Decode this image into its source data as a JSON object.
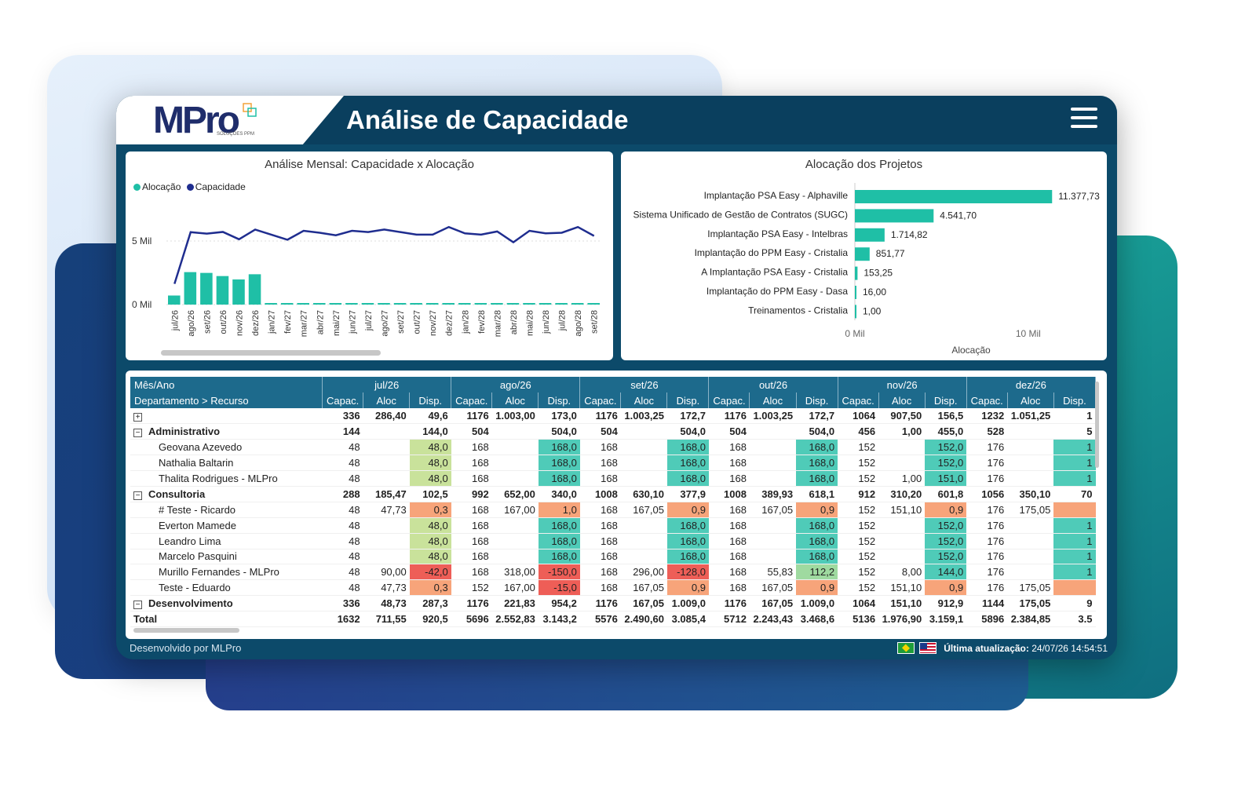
{
  "header": {
    "title": "Análise de Capacidade",
    "logo": "MPro",
    "logo_sub": "SOLUÇÕES PPM"
  },
  "left_chart": {
    "title": "Análise Mensal: Capacidade x Alocação",
    "legend": [
      {
        "name": "Alocação",
        "color": "#1fbfa6"
      },
      {
        "name": "Capacidade",
        "color": "#1f2d8f"
      }
    ],
    "y_ticks": [
      "5 Mil",
      "0 Mil"
    ]
  },
  "right_chart": {
    "title": "Alocação dos Projetos",
    "x_ticks": [
      "0 Mil",
      "10 Mil"
    ],
    "xlabel": "Alocação"
  },
  "chart_data": [
    {
      "type": "bar",
      "title": "Análise Mensal: Capacidade x Alocação",
      "categories": [
        "jul/26",
        "ago/26",
        "set/26",
        "out/26",
        "nov/26",
        "dez/26",
        "jan/27",
        "fev/27",
        "mar/27",
        "abr/27",
        "mai/27",
        "jun/27",
        "jul/27",
        "ago/27",
        "set/27",
        "out/27",
        "nov/27",
        "dez/27",
        "jan/28",
        "fev/28",
        "mar/28",
        "abr/28",
        "mai/28",
        "jun/28",
        "jul/28",
        "ago/28",
        "set/28"
      ],
      "series": [
        {
          "name": "Alocação",
          "type": "bar",
          "values": [
            712,
            2553,
            2491,
            2243,
            1977,
            2385,
            20,
            20,
            15,
            15,
            20,
            40,
            40,
            40,
            40,
            40,
            40,
            40,
            40,
            40,
            40,
            40,
            40,
            40,
            40,
            40,
            40
          ]
        },
        {
          "name": "Capacidade",
          "type": "line",
          "values": [
            1632,
            5696,
            5576,
            5712,
            5136,
            5896,
            5500,
            5100,
            5800,
            5650,
            5450,
            5800,
            5700,
            5900,
            5700,
            5500,
            5500,
            6100,
            5600,
            5500,
            5750,
            4900,
            5800,
            5600,
            5650,
            6100,
            5400
          ]
        }
      ],
      "ylim": [
        0,
        7000
      ]
    },
    {
      "type": "bar",
      "title": "Alocação dos Projetos",
      "categories": [
        "Implantação PSA Easy - Alphaville",
        "Sistema Unificado de Gestão de Contratos (SUGC)",
        "Implantação PSA Easy - Intelbras",
        "Implantação do PPM Easy - Cristalia",
        "A Implantação PSA Easy - Cristalia",
        "Implantação do PPM Easy - Dasa",
        "Treinamentos - Cristalia"
      ],
      "values": [
        11377.73,
        4541.7,
        1714.82,
        851.77,
        153.25,
        16.0,
        1.0
      ],
      "labels": [
        "11.377,73",
        "4.541,70",
        "1.714,82",
        "851,77",
        "153,25",
        "16,00",
        "1,00"
      ],
      "xlabel": "Alocação",
      "xlim": [
        0,
        12000
      ]
    }
  ],
  "table": {
    "corner_top": "Mês/Ano",
    "corner_bottom": "Departamento > Recurso",
    "months": [
      "jul/26",
      "ago/26",
      "set/26",
      "out/26",
      "nov/26",
      "dez/26"
    ],
    "sub_headers": [
      "Capac.",
      "Aloc",
      "Disp."
    ],
    "rows": [
      {
        "kind": "expand",
        "toggle": "⊞",
        "name": "",
        "cells": [
          "336",
          "286,40",
          "49,6",
          "1176",
          "1.003,00",
          "173,0",
          "1176",
          "1.003,25",
          "172,7",
          "1176",
          "1.003,25",
          "172,7",
          "1064",
          "907,50",
          "156,5",
          "1232",
          "1.051,25",
          "1"
        ],
        "bold": true
      },
      {
        "kind": "group",
        "toggle": "⊟",
        "name": "Administrativo",
        "cells": [
          "144",
          "",
          "144,0",
          "504",
          "",
          "504,0",
          "504",
          "",
          "504,0",
          "504",
          "",
          "504,0",
          "456",
          "1,00",
          "455,0",
          "528",
          "",
          "5"
        ]
      },
      {
        "kind": "item",
        "name": "Geovana Azevedo",
        "cells": [
          "48",
          "",
          "48,0",
          "168",
          "",
          "168,0",
          "168",
          "",
          "168,0",
          "168",
          "",
          "168,0",
          "152",
          "",
          "152,0",
          "176",
          "",
          "1"
        ],
        "colors": [
          "",
          "",
          "#c9e29b",
          "",
          "",
          "#4fcbb8",
          "",
          "",
          "#4fcbb8",
          "",
          "",
          "#4fcbb8",
          "",
          "",
          "#4fcbb8",
          "",
          "",
          "#4fcbb8"
        ]
      },
      {
        "kind": "item",
        "name": "Nathalia Baltarin",
        "cells": [
          "48",
          "",
          "48,0",
          "168",
          "",
          "168,0",
          "168",
          "",
          "168,0",
          "168",
          "",
          "168,0",
          "152",
          "",
          "152,0",
          "176",
          "",
          "1"
        ],
        "colors": [
          "",
          "",
          "#c9e29b",
          "",
          "",
          "#4fcbb8",
          "",
          "",
          "#4fcbb8",
          "",
          "",
          "#4fcbb8",
          "",
          "",
          "#4fcbb8",
          "",
          "",
          "#4fcbb8"
        ]
      },
      {
        "kind": "item",
        "name": "Thalita Rodrigues - MLPro",
        "cells": [
          "48",
          "",
          "48,0",
          "168",
          "",
          "168,0",
          "168",
          "",
          "168,0",
          "168",
          "",
          "168,0",
          "152",
          "1,00",
          "151,0",
          "176",
          "",
          "1"
        ],
        "colors": [
          "",
          "",
          "#c9e29b",
          "",
          "",
          "#4fcbb8",
          "",
          "",
          "#4fcbb8",
          "",
          "",
          "#4fcbb8",
          "",
          "",
          "#4fcbb8",
          "",
          "",
          "#4fcbb8"
        ]
      },
      {
        "kind": "group",
        "toggle": "⊟",
        "name": "Consultoria",
        "cells": [
          "288",
          "185,47",
          "102,5",
          "992",
          "652,00",
          "340,0",
          "1008",
          "630,10",
          "377,9",
          "1008",
          "389,93",
          "618,1",
          "912",
          "310,20",
          "601,8",
          "1056",
          "350,10",
          "70"
        ]
      },
      {
        "kind": "item",
        "name": "# Teste - Ricardo",
        "cells": [
          "48",
          "47,73",
          "0,3",
          "168",
          "167,00",
          "1,0",
          "168",
          "167,05",
          "0,9",
          "168",
          "167,05",
          "0,9",
          "152",
          "151,10",
          "0,9",
          "176",
          "175,05",
          ""
        ],
        "colors": [
          "",
          "",
          "#f7a47a",
          "",
          "",
          "#f7a47a",
          "",
          "",
          "#f7a47a",
          "",
          "",
          "#f7a47a",
          "",
          "",
          "#f7a47a",
          "",
          "",
          "#f7a47a"
        ]
      },
      {
        "kind": "item",
        "name": "Everton Mamede",
        "cells": [
          "48",
          "",
          "48,0",
          "168",
          "",
          "168,0",
          "168",
          "",
          "168,0",
          "168",
          "",
          "168,0",
          "152",
          "",
          "152,0",
          "176",
          "",
          "1"
        ],
        "colors": [
          "",
          "",
          "#c9e29b",
          "",
          "",
          "#4fcbb8",
          "",
          "",
          "#4fcbb8",
          "",
          "",
          "#4fcbb8",
          "",
          "",
          "#4fcbb8",
          "",
          "",
          "#4fcbb8"
        ]
      },
      {
        "kind": "item",
        "name": "Leandro Lima",
        "cells": [
          "48",
          "",
          "48,0",
          "168",
          "",
          "168,0",
          "168",
          "",
          "168,0",
          "168",
          "",
          "168,0",
          "152",
          "",
          "152,0",
          "176",
          "",
          "1"
        ],
        "colors": [
          "",
          "",
          "#c9e29b",
          "",
          "",
          "#4fcbb8",
          "",
          "",
          "#4fcbb8",
          "",
          "",
          "#4fcbb8",
          "",
          "",
          "#4fcbb8",
          "",
          "",
          "#4fcbb8"
        ]
      },
      {
        "kind": "item",
        "name": "Marcelo Pasquini",
        "cells": [
          "48",
          "",
          "48,0",
          "168",
          "",
          "168,0",
          "168",
          "",
          "168,0",
          "168",
          "",
          "168,0",
          "152",
          "",
          "152,0",
          "176",
          "",
          "1"
        ],
        "colors": [
          "",
          "",
          "#c9e29b",
          "",
          "",
          "#4fcbb8",
          "",
          "",
          "#4fcbb8",
          "",
          "",
          "#4fcbb8",
          "",
          "",
          "#4fcbb8",
          "",
          "",
          "#4fcbb8"
        ]
      },
      {
        "kind": "item",
        "name": "Murillo Fernandes - MLPro",
        "cells": [
          "48",
          "90,00",
          "-42,0",
          "168",
          "318,00",
          "-150,0",
          "168",
          "296,00",
          "-128,0",
          "168",
          "55,83",
          "112,2",
          "152",
          "8,00",
          "144,0",
          "176",
          "",
          "1"
        ],
        "colors": [
          "",
          "",
          "#ee5e57",
          "",
          "",
          "#ee5e57",
          "",
          "",
          "#ee5e57",
          "",
          "",
          "#9fdaa0",
          "",
          "",
          "#4fcbb8",
          "",
          "",
          "#4fcbb8"
        ]
      },
      {
        "kind": "item",
        "name": "Teste - Eduardo",
        "cells": [
          "48",
          "47,73",
          "0,3",
          "152",
          "167,00",
          "-15,0",
          "168",
          "167,05",
          "0,9",
          "168",
          "167,05",
          "0,9",
          "152",
          "151,10",
          "0,9",
          "176",
          "175,05",
          ""
        ],
        "colors": [
          "",
          "",
          "#f7a47a",
          "",
          "",
          "#ee5e57",
          "",
          "",
          "#f7a47a",
          "",
          "",
          "#f7a47a",
          "",
          "",
          "#f7a47a",
          "",
          "",
          "#f7a47a"
        ]
      },
      {
        "kind": "group",
        "toggle": "⊟",
        "name": "Desenvolvimento",
        "cells": [
          "336",
          "48,73",
          "287,3",
          "1176",
          "221,83",
          "954,2",
          "1176",
          "167,05",
          "1.009,0",
          "1176",
          "167,05",
          "1.009,0",
          "1064",
          "151,10",
          "912,9",
          "1144",
          "175,05",
          "9"
        ],
        "clip": true
      }
    ],
    "total": {
      "name": "Total",
      "cells": [
        "1632",
        "711,55",
        "920,5",
        "5696",
        "2.552,83",
        "3.143,2",
        "5576",
        "2.490,60",
        "3.085,4",
        "5712",
        "2.243,43",
        "3.468,6",
        "5136",
        "1.976,90",
        "3.159,1",
        "5896",
        "2.384,85",
        "3.5"
      ]
    }
  },
  "footer": {
    "left": "Desenvolvido por MLPro",
    "update_label": "Última atualização:",
    "update_value": "24/07/26 14:54:51"
  }
}
